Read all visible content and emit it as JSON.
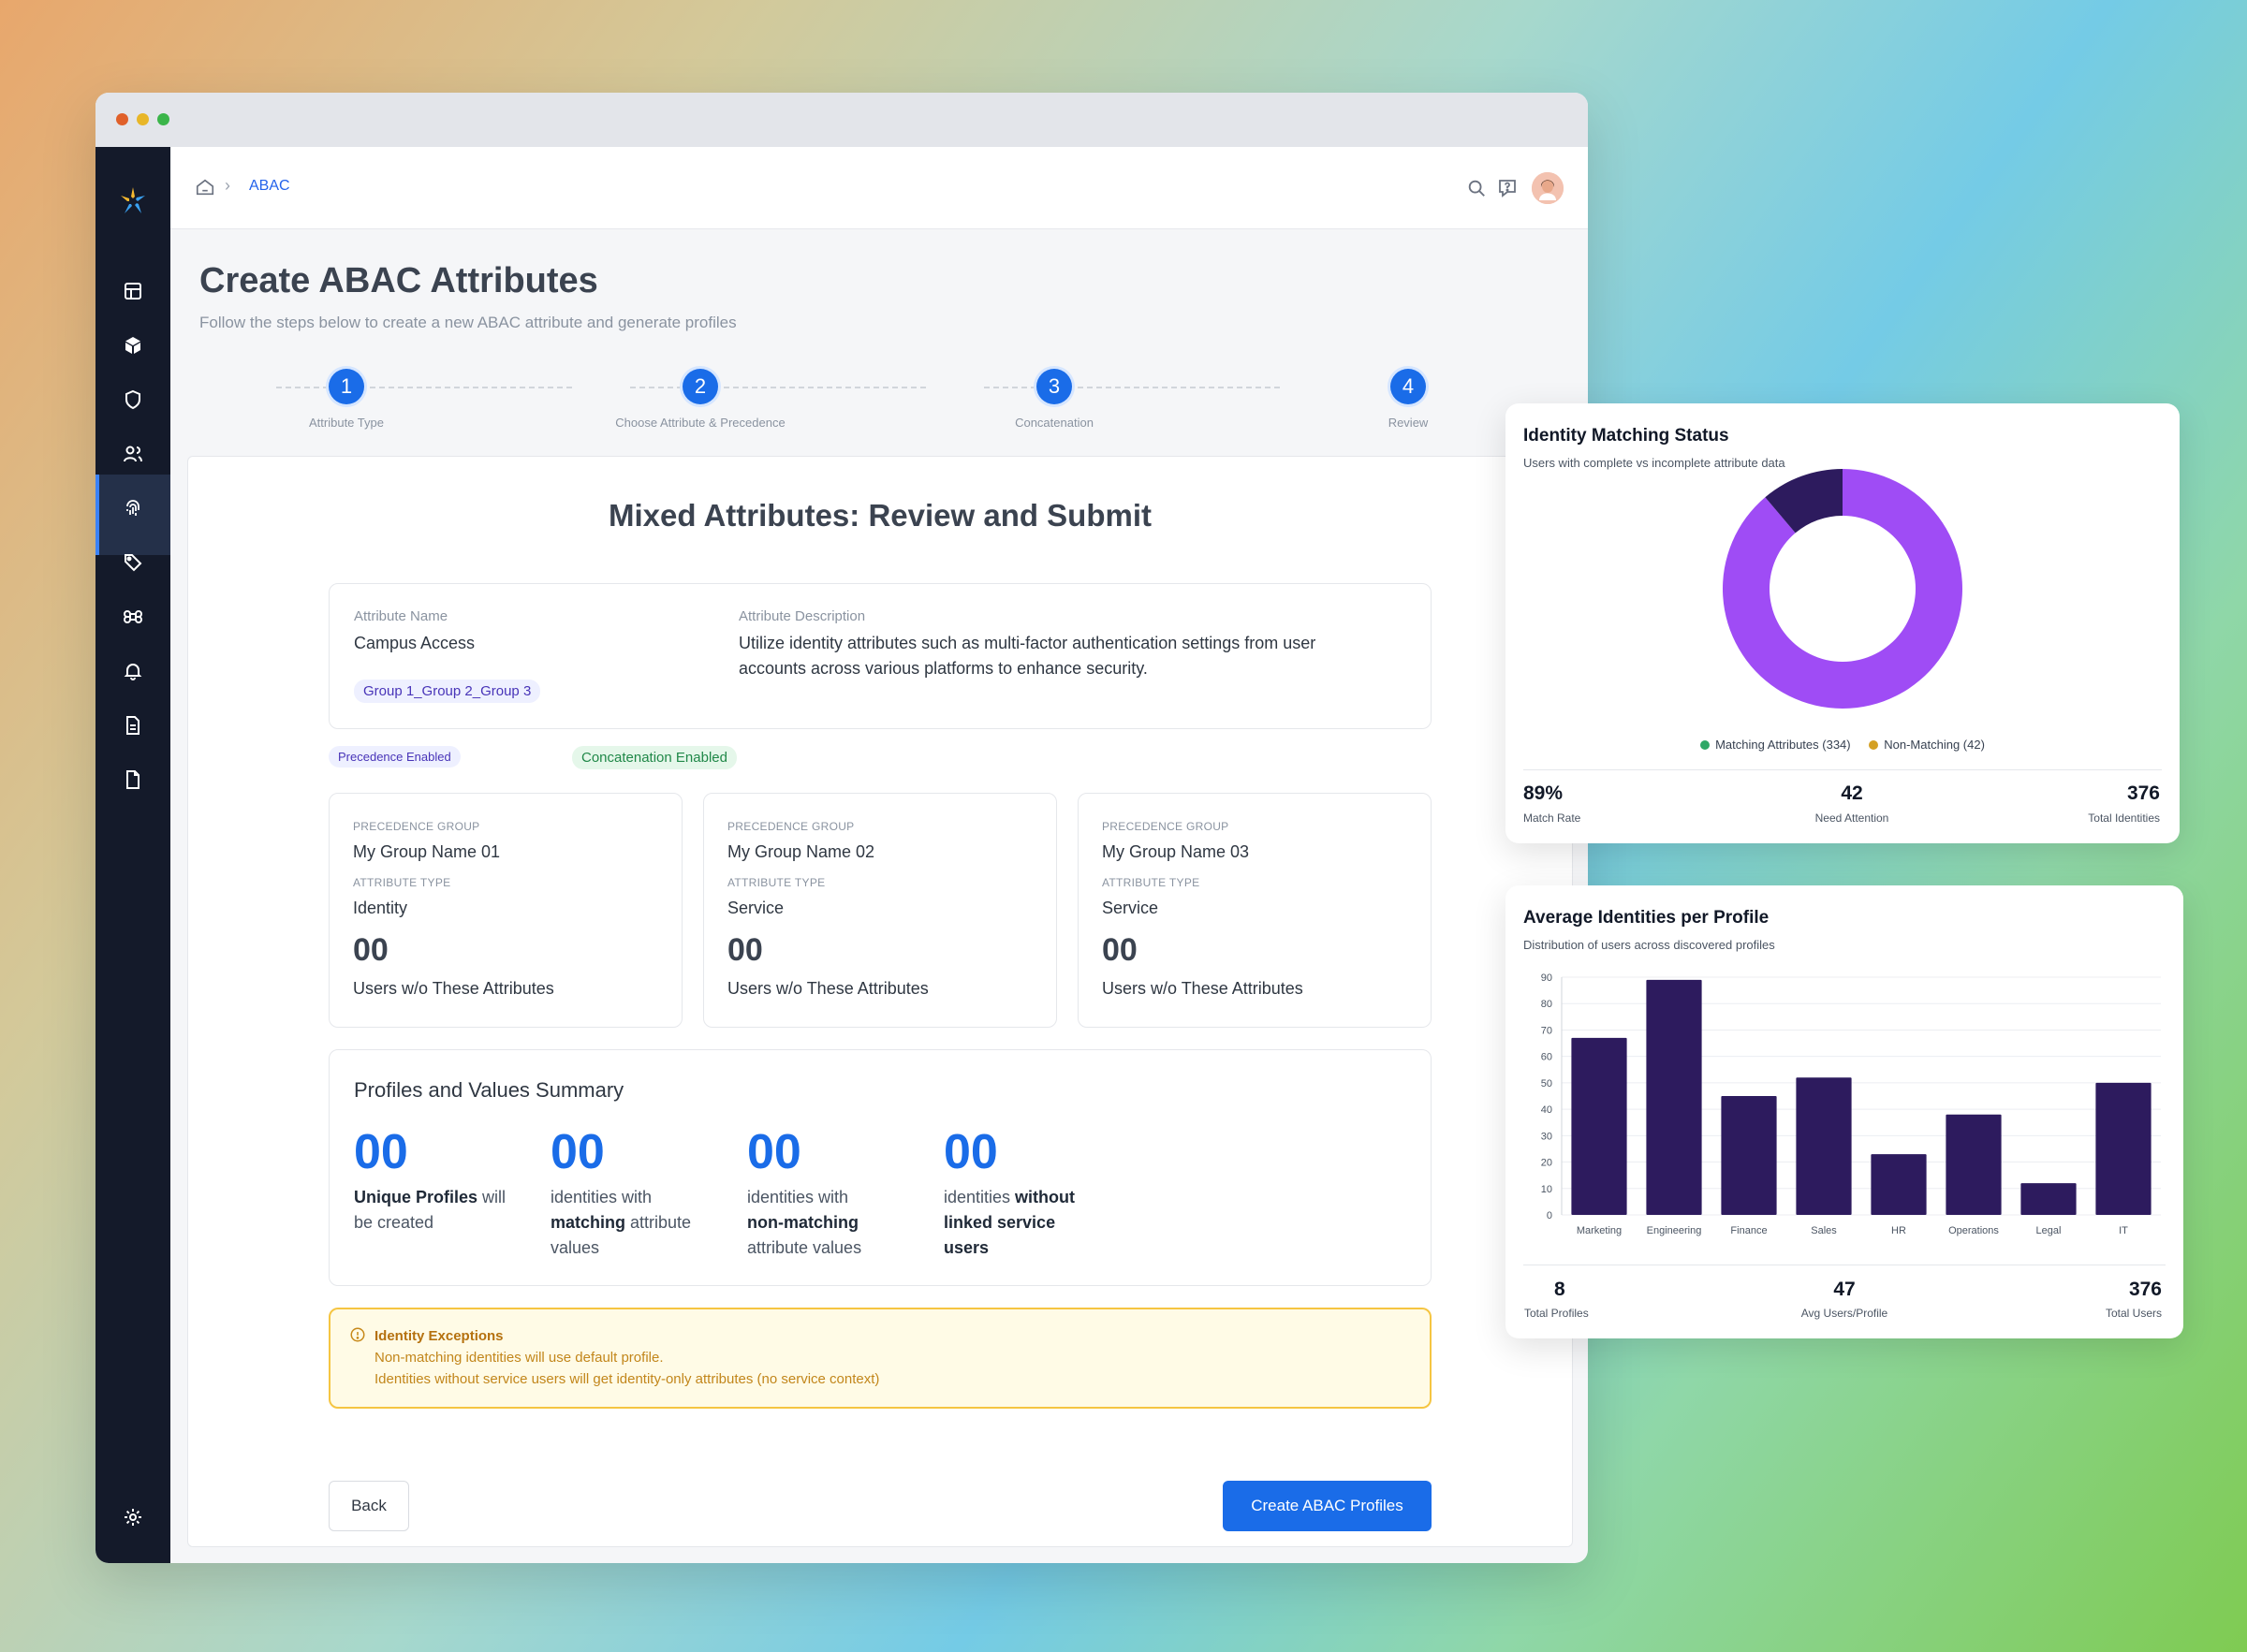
{
  "breadcrumb": {
    "current": "ABAC"
  },
  "page": {
    "title": "Create ABAC Attributes",
    "subtitle": "Follow the steps below to create a new ABAC attribute and generate profiles"
  },
  "steps": [
    {
      "number": "1",
      "label": "Attribute Type"
    },
    {
      "number": "2",
      "label": "Choose Attribute & Precedence"
    },
    {
      "number": "3",
      "label": "Concatenation"
    },
    {
      "number": "4",
      "label": "Review"
    }
  ],
  "review": {
    "title": "Mixed Attributes: Review and Submit",
    "attr_name_label": "Attribute Name",
    "attr_name": "Campus Access",
    "attr_tag": "Group 1_Group 2_Group 3",
    "attr_desc_label": "Attribute Description",
    "attr_desc_line1": "Utilize identity attributes such as multi-factor authentication settings from user",
    "attr_desc_line2": "accounts across various platforms to enhance security.",
    "precedence_badge": "Precedence Enabled",
    "concat_badge": "Concatenation Enabled"
  },
  "groups": [
    {
      "group_caption": "PRECEDENCE GROUP",
      "group_name": "My Group Name 01",
      "type_caption": "ATTRIBUTE TYPE",
      "type": "Identity",
      "count": "00",
      "footer": "Users w/o These Attributes"
    },
    {
      "group_caption": "PRECEDENCE GROUP",
      "group_name": "My Group Name 02",
      "type_caption": "ATTRIBUTE TYPE",
      "type": "Service",
      "count": "00",
      "footer": "Users w/o These Attributes"
    },
    {
      "group_caption": "PRECEDENCE GROUP",
      "group_name": "My Group Name 03",
      "type_caption": "ATTRIBUTE TYPE",
      "type": "Service",
      "count": "00",
      "footer": "Users w/o These Attributes"
    }
  ],
  "summary": {
    "title": "Profiles and Values Summary",
    "items": [
      {
        "number": "00",
        "bold1": "Unique Profiles",
        "text1": " will",
        "line2": "be created"
      },
      {
        "number": "00",
        "line1": "identities with",
        "bold2": "matching",
        "text2": " attribute",
        "line3": "values"
      },
      {
        "number": "00",
        "line1": "identities with",
        "bold2": "non-matching",
        "line3": "attribute values"
      },
      {
        "number": "00",
        "line1": "identities ",
        "bold1": "without",
        "bold2": "linked service",
        "bold3": "users"
      }
    ]
  },
  "exceptions": {
    "title": "Identity Exceptions",
    "line1": "Non-matching identities will use default profile.",
    "line2": "Identities without service users will get identity-only attributes (no service context)"
  },
  "buttons": {
    "back": "Back",
    "create": "Create ABAC Profiles"
  },
  "identity_panel": {
    "title": "Identity Matching Status",
    "subtitle": "Users with complete vs incomplete attribute data",
    "legend": [
      "Matching Attributes (334)",
      "Non-Matching (42)"
    ],
    "kpis": [
      {
        "value": "89%",
        "label": "Match Rate"
      },
      {
        "value": "42",
        "label": "Need Attention"
      },
      {
        "value": "376",
        "label": "Total Identities"
      }
    ]
  },
  "profile_panel": {
    "title": "Average Identities per Profile",
    "subtitle": "Distribution of users across discovered profiles",
    "kpis": [
      {
        "value": "8",
        "label": "Total Profiles"
      },
      {
        "value": "47",
        "label": "Avg Users/Profile"
      },
      {
        "value": "376",
        "label": "Total Users"
      }
    ]
  },
  "colors": {
    "primary": "#1a6ce8",
    "donut_match": "#9f4cf5",
    "donut_non_match": "#2d1b5e",
    "bar": "#2d1b5e",
    "legend_match_dot": "#2fa866",
    "legend_non_match_dot": "#d4a023"
  },
  "chart_data": [
    {
      "type": "pie",
      "categories": [
        "Matching Attributes",
        "Non-Matching"
      ],
      "values": [
        334,
        42
      ]
    },
    {
      "type": "bar",
      "categories": [
        "Marketing",
        "Engineering",
        "Finance",
        "Sales",
        "HR",
        "Operations",
        "Legal",
        "IT"
      ],
      "values": [
        67,
        89,
        45,
        52,
        23,
        38,
        12,
        50
      ],
      "yticks": [
        "0",
        "10",
        "20",
        "30",
        "40",
        "50",
        "60",
        "70",
        "80",
        "90"
      ],
      "ylim": [
        0,
        90
      ],
      "grid": true
    }
  ]
}
